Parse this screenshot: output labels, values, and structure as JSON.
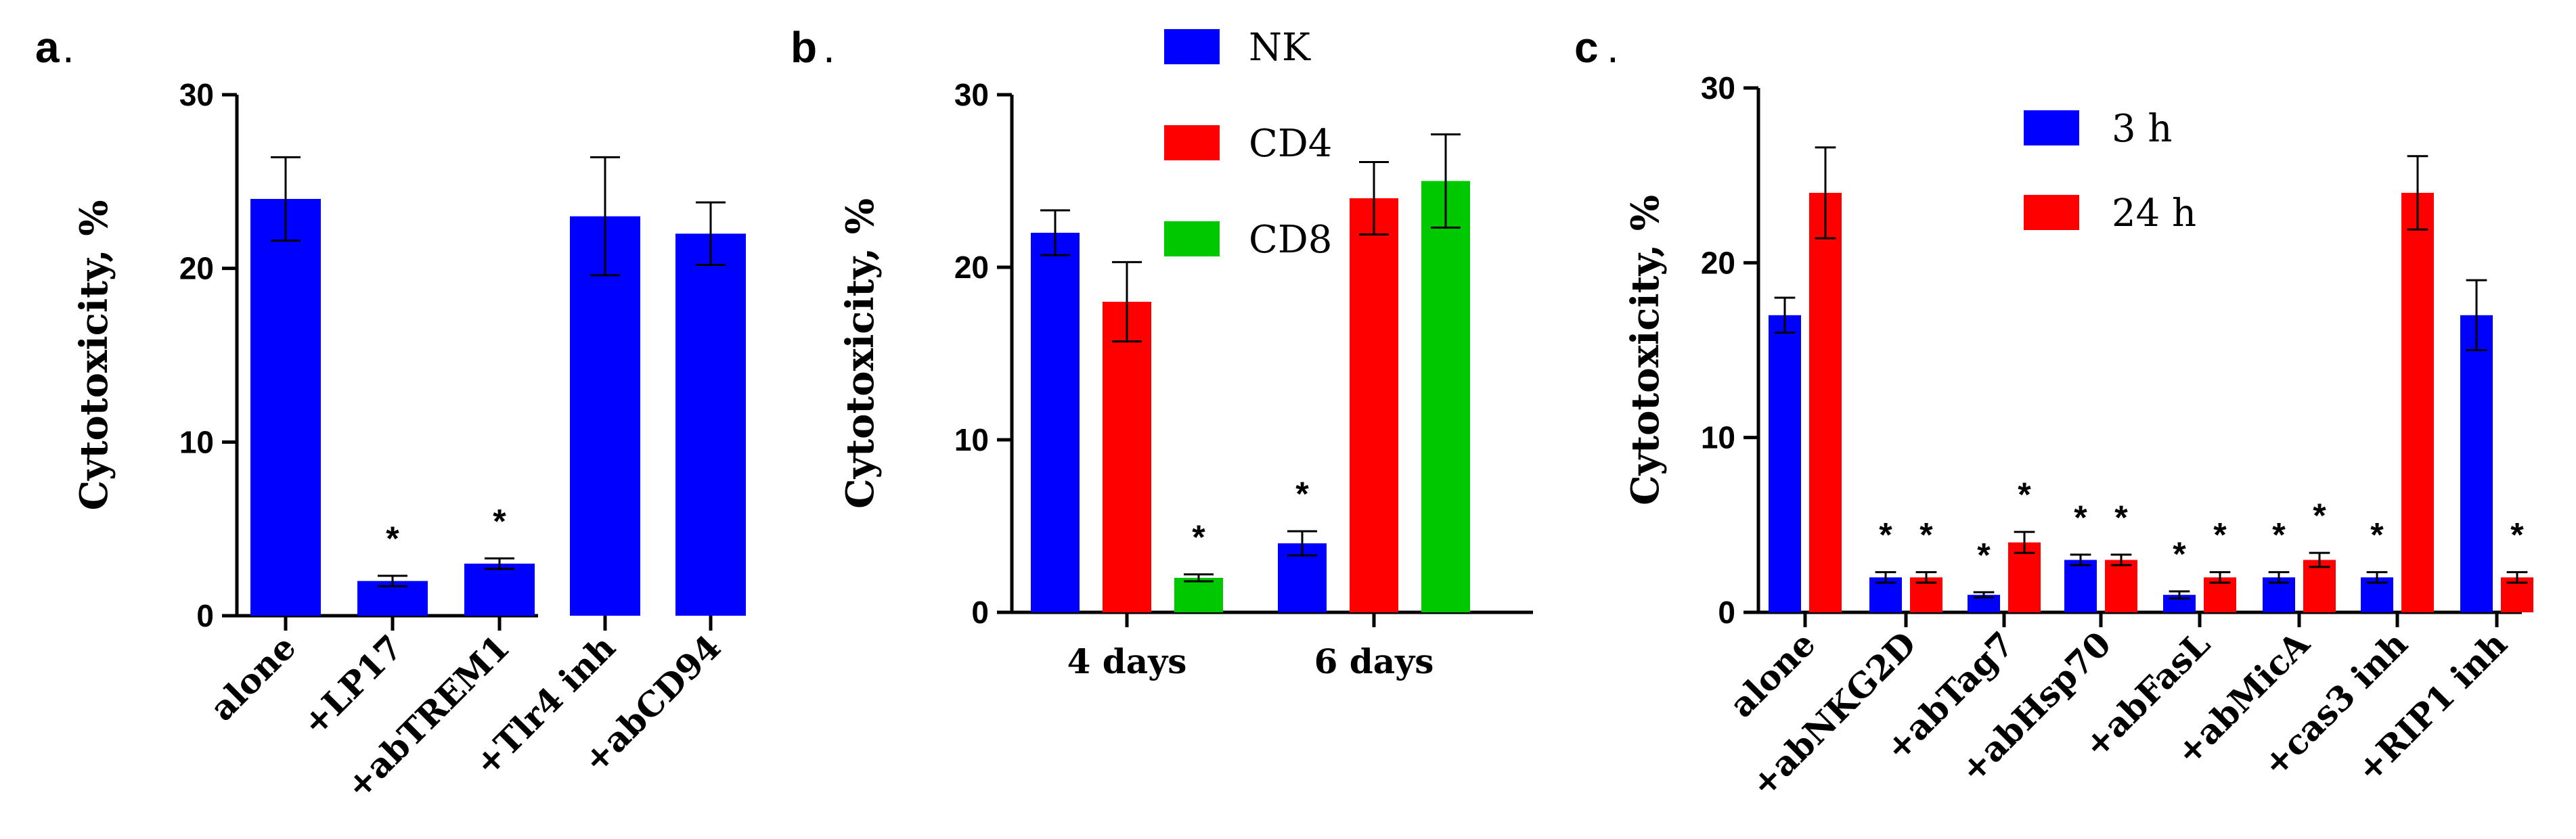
{
  "colors": {
    "blue": "#0000ff",
    "red": "#ff0000",
    "green": "#00c800"
  },
  "chart_data": [
    {
      "type": "bar",
      "panel_label": "a",
      "panel_suffix": ".",
      "ylabel": "Cytotoxicity, %",
      "ylim": [
        0,
        30
      ],
      "yticks": [
        0,
        10,
        20,
        30
      ],
      "categories": [
        "alone",
        "+LP17",
        "+abTREM1",
        "+Tlr4 inh",
        "+abCD94"
      ],
      "series": [
        {
          "name": "",
          "color": "#0000ff",
          "values": [
            24,
            2,
            3,
            23,
            22
          ],
          "errors": [
            2.4,
            0.3,
            0.3,
            3.4,
            1.8
          ],
          "marks": [
            "",
            "*",
            "*",
            "",
            ""
          ]
        }
      ]
    },
    {
      "type": "bar",
      "panel_label": "b",
      "panel_suffix": ".",
      "ylabel": "Cytotoxicity, %",
      "ylim": [
        0,
        30
      ],
      "yticks": [
        0,
        10,
        20,
        30
      ],
      "categories": [
        "4 days",
        "6 days"
      ],
      "legend": [
        {
          "label": "NK",
          "color": "#0000ff"
        },
        {
          "label": "CD4",
          "color": "#ff0000"
        },
        {
          "label": "CD8",
          "color": "#00c800"
        }
      ],
      "series": [
        {
          "name": "NK",
          "color": "#0000ff",
          "values": [
            22,
            4
          ],
          "errors": [
            1.3,
            0.7
          ],
          "marks": [
            "",
            "*"
          ]
        },
        {
          "name": "CD4",
          "color": "#ff0000",
          "values": [
            18,
            24
          ],
          "errors": [
            2.3,
            2.1
          ],
          "marks": [
            "",
            ""
          ]
        },
        {
          "name": "CD8",
          "color": "#00c800",
          "values": [
            2,
            25
          ],
          "errors": [
            0.2,
            2.7
          ],
          "marks": [
            "*",
            ""
          ]
        }
      ]
    },
    {
      "type": "bar",
      "panel_label": "c",
      "panel_suffix": ".",
      "ylabel": "Cytotoxicity, %",
      "ylim": [
        0,
        30
      ],
      "yticks": [
        0,
        10,
        20,
        30
      ],
      "categories": [
        "alone",
        "+abNKG2D",
        "+abTag7",
        "+abHsp70",
        "+abFasL",
        "+abMicA",
        "+cas3 inh",
        "+RIP1 inh"
      ],
      "legend": [
        {
          "label": "3 h",
          "color": "#0000ff"
        },
        {
          "label": "24 h",
          "color": "#ff0000"
        }
      ],
      "series": [
        {
          "name": "3 h",
          "color": "#0000ff",
          "values": [
            17,
            2,
            1,
            3,
            1,
            2,
            2,
            17
          ],
          "errors": [
            1.0,
            0.3,
            0.15,
            0.3,
            0.2,
            0.3,
            0.3,
            2.0
          ],
          "marks": [
            "",
            "*",
            "*",
            "*",
            "*",
            "*",
            "*",
            ""
          ]
        },
        {
          "name": "24 h",
          "color": "#ff0000",
          "values": [
            24,
            2,
            4,
            3,
            2,
            3,
            24,
            2
          ],
          "errors": [
            2.6,
            0.3,
            0.6,
            0.3,
            0.3,
            0.4,
            2.1,
            0.3
          ],
          "marks": [
            "",
            "*",
            "*",
            "*",
            "*",
            "*",
            "",
            "*"
          ]
        }
      ]
    }
  ]
}
